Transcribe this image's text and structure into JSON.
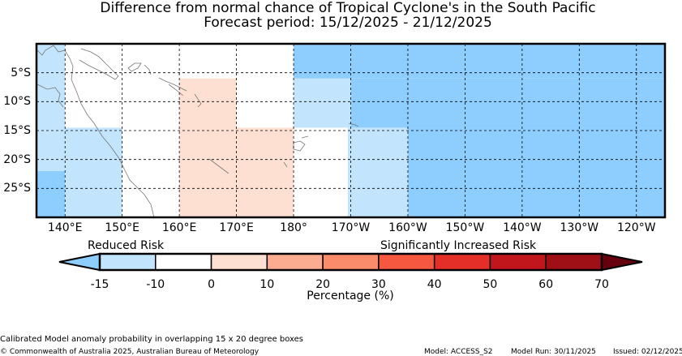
{
  "title": {
    "line1": "Difference from normal chance of Tropical Cyclone's in the South Pacific",
    "line2": "Forecast period: 15/12/2025 - 21/12/2025"
  },
  "map": {
    "lon_range": [
      135,
      245
    ],
    "lat_range": [
      0,
      -30
    ],
    "lon_labels": [
      {
        "lon": 140,
        "text": "140°E"
      },
      {
        "lon": 150,
        "text": "150°E"
      },
      {
        "lon": 160,
        "text": "160°E"
      },
      {
        "lon": 170,
        "text": "170°E"
      },
      {
        "lon": 180,
        "text": "180°"
      },
      {
        "lon": 190,
        "text": "170°W"
      },
      {
        "lon": 200,
        "text": "160°W"
      },
      {
        "lon": 210,
        "text": "150°W"
      },
      {
        "lon": 220,
        "text": "140°W"
      },
      {
        "lon": 230,
        "text": "130°W"
      },
      {
        "lon": 240,
        "text": "120°W"
      }
    ],
    "lat_labels": [
      {
        "lat": -5,
        "text": "5°S"
      },
      {
        "lat": -10,
        "text": "10°S"
      },
      {
        "lat": -15,
        "text": "15°S"
      },
      {
        "lat": -20,
        "text": "20°S"
      },
      {
        "lat": -25,
        "text": "25°S"
      }
    ],
    "cells": [
      {
        "lon0": 135,
        "lon1": 140,
        "lat0": 0,
        "lat1": -22,
        "color": "#c2e4fc"
      },
      {
        "lon0": 135,
        "lon1": 140,
        "lat0": -22,
        "lat1": -30,
        "color": "#8ecefe"
      },
      {
        "lon0": 140,
        "lon1": 150,
        "lat0": -14.5,
        "lat1": -30,
        "color": "#c2e4fc"
      },
      {
        "lon0": 160,
        "lon1": 170,
        "lat0": -6,
        "lat1": -30,
        "color": "#fee0d2"
      },
      {
        "lon0": 170,
        "lon1": 180,
        "lat0": -14.5,
        "lat1": -30,
        "color": "#fee0d2"
      },
      {
        "lon0": 180,
        "lon1": 245,
        "lat0": 0,
        "lat1": -6,
        "color": "#8ecefe"
      },
      {
        "lon0": 180,
        "lon1": 190,
        "lat0": -6,
        "lat1": -14.5,
        "color": "#c2e4fc"
      },
      {
        "lon0": 190,
        "lon1": 245,
        "lat0": -6,
        "lat1": -14.5,
        "color": "#8ecefe"
      },
      {
        "lon0": 189.5,
        "lon1": 200,
        "lat0": -14.5,
        "lat1": -30,
        "color": "#c2e4fc"
      },
      {
        "lon0": 200,
        "lon1": 245,
        "lat0": -14.5,
        "lat1": -30,
        "color": "#8ecefe"
      }
    ]
  },
  "legend": {
    "reduced": "Reduced Risk",
    "increased": "Significantly Increased Risk",
    "axis_title": "Percentage (%)",
    "ticks": [
      "-15",
      "-10",
      "0",
      "10",
      "20",
      "30",
      "40",
      "50",
      "60",
      "70"
    ],
    "under_color": "#8ecefe",
    "over_color": "#67000d",
    "segments": [
      "#c2e4fc",
      "#ffffff",
      "#fee0d2",
      "#fcad91",
      "#fb8c6b",
      "#f6583f",
      "#e32f27",
      "#c1161b",
      "#9f0f16"
    ]
  },
  "footer": {
    "note": "Calibrated Model anomaly probability in overlapping 15 x 20 degree boxes",
    "copyright": "© Commonwealth of Australia 2025, Australian Bureau of Meteorology",
    "model": "Model: ACCESS_S2",
    "run": "Model Run: 30/11/2025",
    "issued": "Issued: 02/12/2025"
  }
}
